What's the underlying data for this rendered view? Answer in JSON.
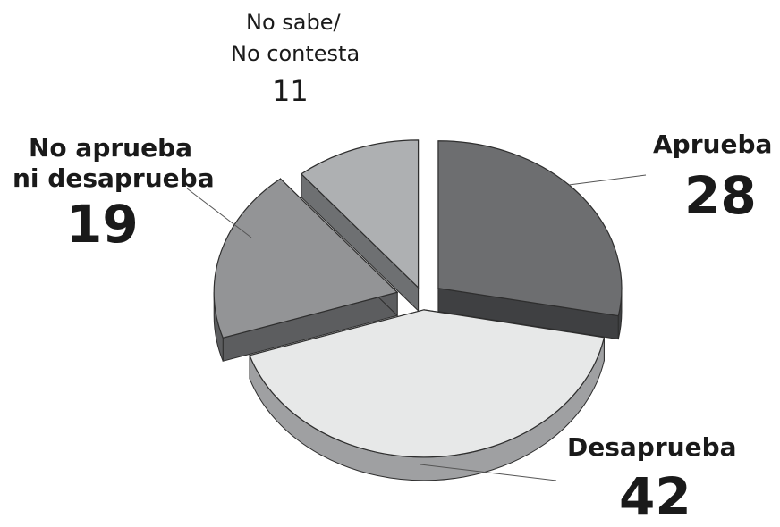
{
  "chart_data": {
    "type": "pie",
    "title": "",
    "slices": [
      {
        "label": "Aprueba",
        "value": 28
      },
      {
        "label": "Desaprueba",
        "value": 42
      },
      {
        "label": "No aprueba ni desaprueba",
        "value": 19
      },
      {
        "label": "No sabe/ No contesta",
        "value": 11
      }
    ],
    "unit": "percent",
    "style": "3d-exploded",
    "legend": "none",
    "colors": [
      "#6d6e70",
      "#e7e8e8",
      "#939496",
      "#aeb0b2"
    ]
  },
  "labels": {
    "aprueba": {
      "line1": "Aprueba",
      "value": "28"
    },
    "desaprueba": {
      "line1": "Desaprueba",
      "value": "42"
    },
    "no_aprueba": {
      "line1": "No aprueba",
      "line2": "ni desaprueba",
      "value": "19"
    },
    "no_sabe": {
      "line1": "No sabe/",
      "line2": "No contesta",
      "value": "11"
    }
  }
}
